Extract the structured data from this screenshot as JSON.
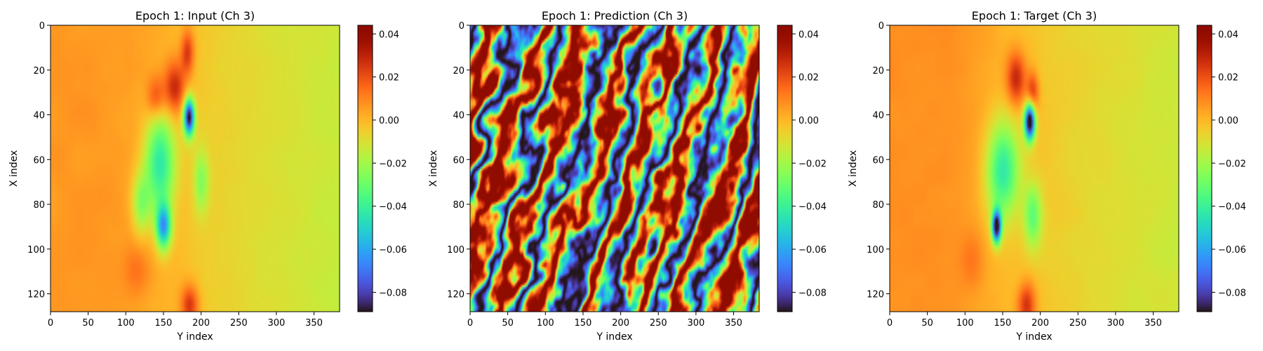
{
  "chart_data": [
    {
      "type": "heatmap",
      "title": "Epoch 1: Input (Ch 3)",
      "xlabel": "Y index",
      "ylabel": "X index",
      "x_range": [
        0,
        384
      ],
      "y_range": [
        0,
        128
      ],
      "x_ticks": [
        0,
        50,
        100,
        150,
        200,
        250,
        300,
        350
      ],
      "y_ticks": [
        0,
        20,
        40,
        60,
        80,
        100,
        120
      ],
      "field": "input"
    },
    {
      "type": "heatmap",
      "title": "Epoch 1: Prediction (Ch 3)",
      "xlabel": "Y index",
      "ylabel": "X index",
      "x_range": [
        0,
        384
      ],
      "y_range": [
        0,
        128
      ],
      "x_ticks": [
        0,
        50,
        100,
        150,
        200,
        250,
        300,
        350
      ],
      "y_ticks": [
        0,
        20,
        40,
        60,
        80,
        100,
        120
      ],
      "field": "prediction"
    },
    {
      "type": "heatmap",
      "title": "Epoch 1: Target (Ch 3)",
      "xlabel": "Y index",
      "ylabel": "X index",
      "x_range": [
        0,
        384
      ],
      "y_range": [
        0,
        128
      ],
      "x_ticks": [
        0,
        50,
        100,
        150,
        200,
        250,
        300,
        350
      ],
      "y_ticks": [
        0,
        20,
        40,
        60,
        80,
        100,
        120
      ],
      "field": "target"
    }
  ],
  "colorbar": {
    "colormap": "turbo",
    "vmin": -0.089,
    "vmax": 0.044,
    "tick_values": [
      0.04,
      0.02,
      0.0,
      -0.02,
      -0.04,
      -0.06,
      -0.08
    ],
    "tick_labels": [
      "0.04",
      "0.02",
      "0.00",
      "−0.02",
      "−0.04",
      "−0.06",
      "−0.08"
    ]
  }
}
